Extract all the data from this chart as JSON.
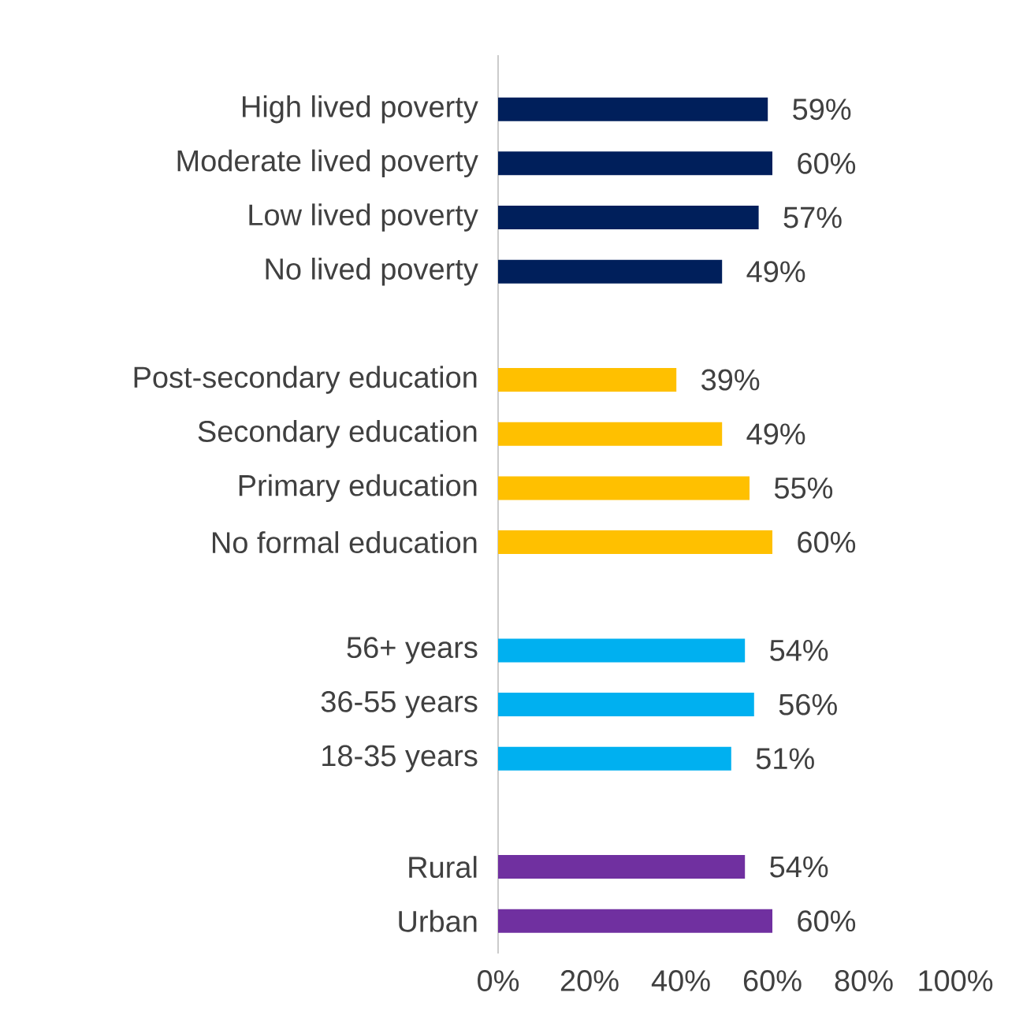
{
  "chart_data": {
    "type": "bar",
    "orientation": "horizontal",
    "categories": [
      "High lived poverty",
      "Moderate lived poverty",
      "Low lived poverty",
      "No lived poverty",
      null,
      "Post-secondary education",
      "Secondary education",
      "Primary education",
      "No formal education",
      null,
      "56+ years",
      "36-55 years",
      "18-35 years",
      null,
      "Rural",
      "Urban"
    ],
    "values": [
      59,
      60,
      57,
      49,
      null,
      39,
      49,
      55,
      60,
      null,
      54,
      56,
      51,
      null,
      54,
      60
    ],
    "colors": [
      "#001f5b",
      "#001f5b",
      "#001f5b",
      "#001f5b",
      null,
      "#ffc000",
      "#ffc000",
      "#ffc000",
      "#ffc000",
      null,
      "#00b0f0",
      "#00b0f0",
      "#00b0f0",
      null,
      "#7030a0",
      "#7030a0"
    ],
    "value_labels": [
      "59%",
      "60%",
      "57%",
      "49%",
      null,
      "39%",
      "49%",
      "55%",
      "60%",
      null,
      "54%",
      "56%",
      "51%",
      null,
      "54%",
      "60%"
    ],
    "xlim": [
      0,
      100
    ],
    "xticks": [
      {
        "value": 0,
        "label": "0%"
      },
      {
        "value": 20,
        "label": "20%"
      },
      {
        "value": 40,
        "label": "40%"
      },
      {
        "value": 60,
        "label": "60%"
      },
      {
        "value": 80,
        "label": "80%"
      },
      {
        "value": 100,
        "label": "100%"
      }
    ]
  }
}
